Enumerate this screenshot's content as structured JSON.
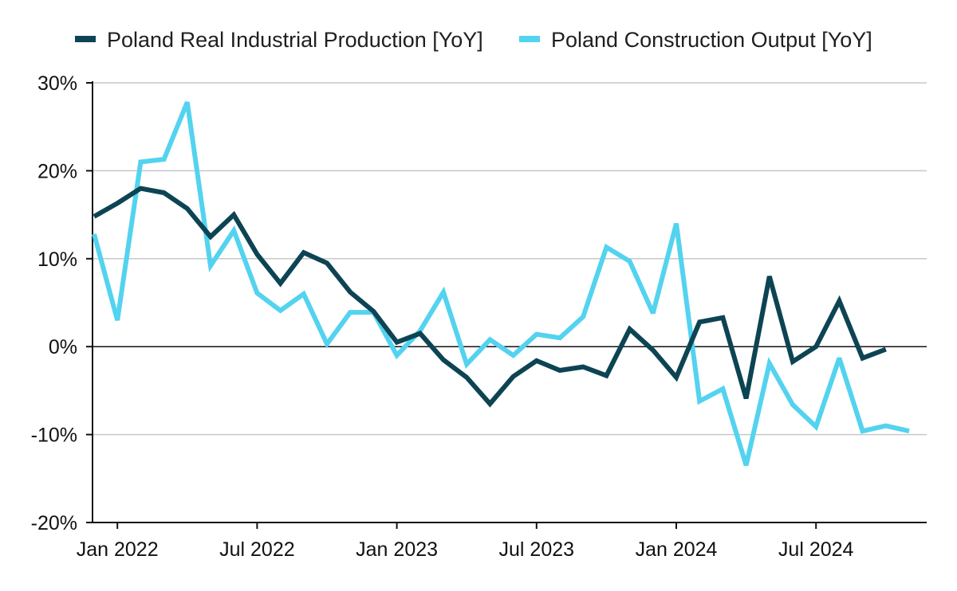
{
  "chart_data": {
    "type": "line",
    "title": "",
    "xlabel": "",
    "ylabel": "",
    "x": [
      "2021-12",
      "2022-01",
      "2022-02",
      "2022-03",
      "2022-04",
      "2022-05",
      "2022-06",
      "2022-07",
      "2022-08",
      "2022-09",
      "2022-10",
      "2022-11",
      "2022-12",
      "2023-01",
      "2023-02",
      "2023-03",
      "2023-04",
      "2023-05",
      "2023-06",
      "2023-07",
      "2023-08",
      "2023-09",
      "2023-10",
      "2023-11",
      "2023-12",
      "2024-01",
      "2024-02",
      "2024-03",
      "2024-04",
      "2024-05",
      "2024-06",
      "2024-07",
      "2024-08",
      "2024-09",
      "2024-10",
      "2024-11"
    ],
    "xtick_labels": [
      "Jan 2022",
      "Jul 2022",
      "Jan 2023",
      "Jul 2023",
      "Jan 2024",
      "Jul 2024"
    ],
    "xtick_positions": [
      "2022-01",
      "2022-07",
      "2023-01",
      "2023-07",
      "2024-01",
      "2024-07"
    ],
    "ylim": [
      -20,
      30
    ],
    "yticks": [
      -20,
      -10,
      0,
      10,
      20,
      30
    ],
    "ytick_labels": [
      "-20%",
      "-10%",
      "0%",
      "10%",
      "20%",
      "30%"
    ],
    "grid": "horizontal",
    "legend_position": "top",
    "series": [
      {
        "name": "Poland Real Industrial Production [YoY]",
        "color": "#0d4454",
        "values": [
          14.8,
          16.3,
          18.0,
          17.5,
          15.7,
          12.5,
          15.0,
          10.5,
          7.2,
          10.7,
          9.5,
          6.2,
          4.0,
          0.5,
          1.5,
          -1.5,
          -3.5,
          -6.5,
          -3.4,
          -1.6,
          -2.7,
          -2.3,
          -3.3,
          2.0,
          -0.4,
          -3.5,
          2.8,
          3.3,
          -5.9,
          8.0,
          -1.7,
          0.0,
          5.2,
          -1.3,
          -0.3,
          null
        ]
      },
      {
        "name": "Poland Construction Output [YoY]",
        "color": "#53d3ef",
        "values": [
          12.8,
          3.0,
          21.0,
          21.3,
          27.8,
          9.2,
          13.2,
          6.1,
          4.1,
          6.0,
          0.3,
          3.9,
          3.9,
          -1.0,
          1.8,
          6.2,
          -2.0,
          0.8,
          -1.0,
          1.4,
          1.0,
          3.4,
          11.3,
          9.7,
          3.8,
          14.0,
          -6.2,
          -4.8,
          -13.5,
          -1.9,
          -6.6,
          -9.1,
          -1.3,
          -9.6,
          -9.0,
          -9.6
        ]
      }
    ]
  }
}
